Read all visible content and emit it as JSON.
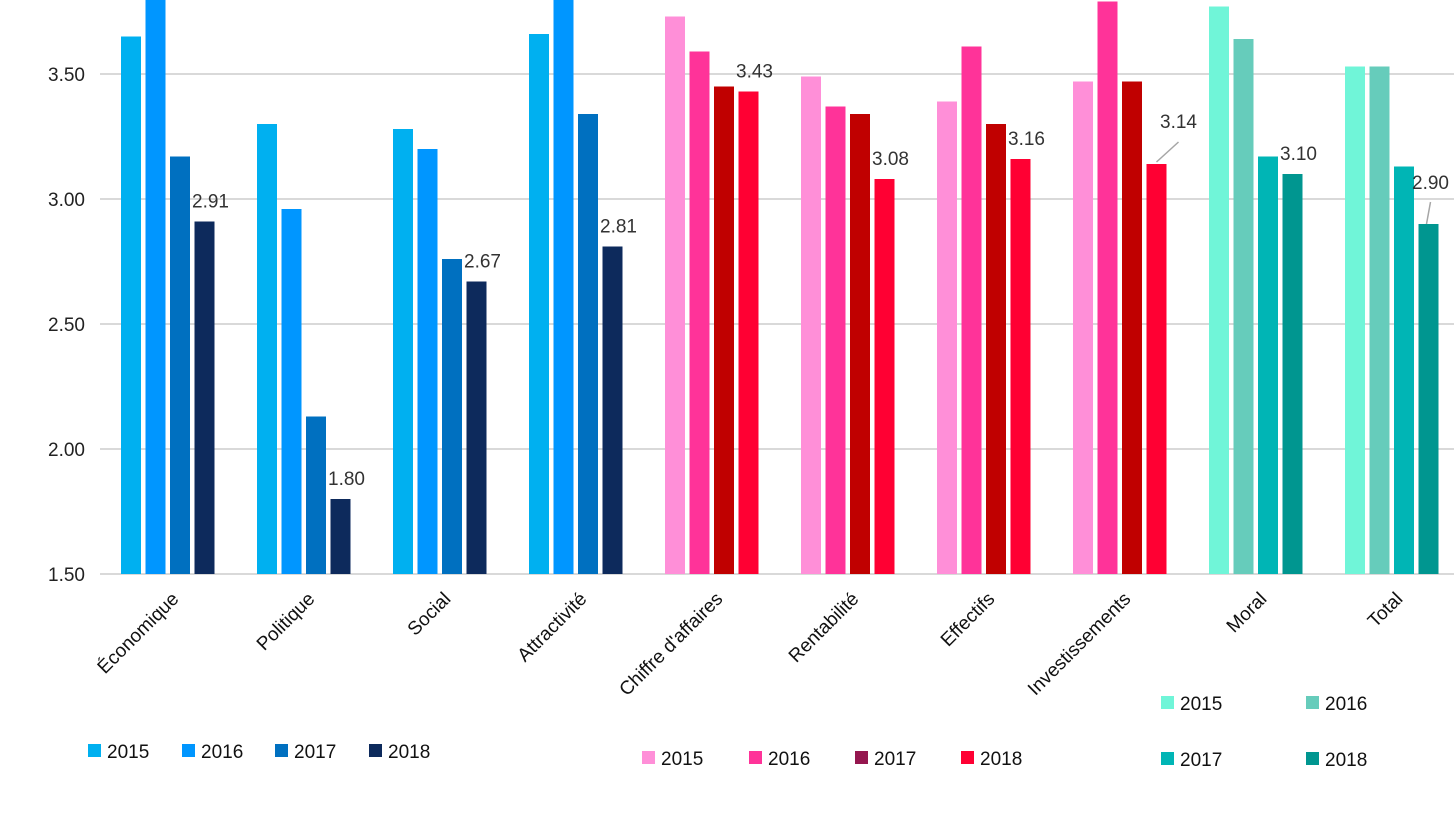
{
  "chart_data": {
    "type": "bar",
    "title": "",
    "xlabel": "",
    "ylabel": "",
    "ylim": [
      1.5,
      3.8
    ],
    "yticks": [
      "1.50",
      "2.00",
      "2.50",
      "3.00",
      "3.50"
    ],
    "ytick_values": [
      1.5,
      2.0,
      2.5,
      3.0,
      3.5
    ],
    "grid": true,
    "categories": [
      "Économique",
      "Politique",
      "Social",
      "Attractivité",
      "Chiffre d'affaires",
      "Rentabilité",
      "Effectifs",
      "Investissements",
      "Moral",
      "Total"
    ],
    "series": [
      {
        "name": "2015",
        "values": [
          3.65,
          3.3,
          3.28,
          3.66,
          3.73,
          3.49,
          3.39,
          3.47,
          3.77,
          3.53
        ]
      },
      {
        "name": "2016",
        "values": [
          3.85,
          2.96,
          3.2,
          3.85,
          3.59,
          3.37,
          3.61,
          3.79,
          3.64,
          3.53
        ]
      },
      {
        "name": "2017",
        "values": [
          3.17,
          2.13,
          2.76,
          3.34,
          3.45,
          3.34,
          3.3,
          3.47,
          3.17,
          3.13
        ]
      },
      {
        "name": "2018",
        "values": [
          2.91,
          1.8,
          2.67,
          2.81,
          3.43,
          3.08,
          3.16,
          3.14,
          3.1,
          2.9
        ]
      }
    ],
    "data_labels": [
      "2.91",
      "1.80",
      "2.67",
      "2.81",
      "3.43",
      "3.08",
      "3.16",
      "3.14",
      "3.10",
      "2.90"
    ],
    "group_colors": [
      {
        "categories": [
          0,
          1,
          2,
          3
        ],
        "colors": [
          "#00B0F0",
          "#0096FF",
          "#0070C0",
          "#0D2A5C"
        ]
      },
      {
        "categories": [
          4,
          5,
          6,
          7
        ],
        "colors": [
          "#FF8FD8",
          "#FF3399",
          "#C00000",
          "#FF0033"
        ]
      },
      {
        "categories": [
          8,
          9
        ],
        "colors": [
          "#70F5D8",
          "#66CCBB",
          "#00B5B5",
          "#009690"
        ]
      }
    ],
    "legends": [
      {
        "placement": "bottom-left",
        "entries": [
          "2015",
          "2016",
          "2017",
          "2018"
        ],
        "colors": [
          "#00B0F0",
          "#0096FF",
          "#0070C0",
          "#0D2A5C"
        ]
      },
      {
        "placement": "bottom-center",
        "entries": [
          "2015",
          "2016",
          "2017",
          "2018"
        ],
        "colors": [
          "#FF8FD8",
          "#FF3399",
          "#95174F",
          "#FF0033"
        ]
      },
      {
        "placement": "bottom-right",
        "entries": [
          "2015",
          "2016",
          "2017",
          "2018"
        ],
        "colors": [
          "#70F5D8",
          "#66CCBB",
          "#00B5B5",
          "#009690"
        ]
      }
    ]
  }
}
